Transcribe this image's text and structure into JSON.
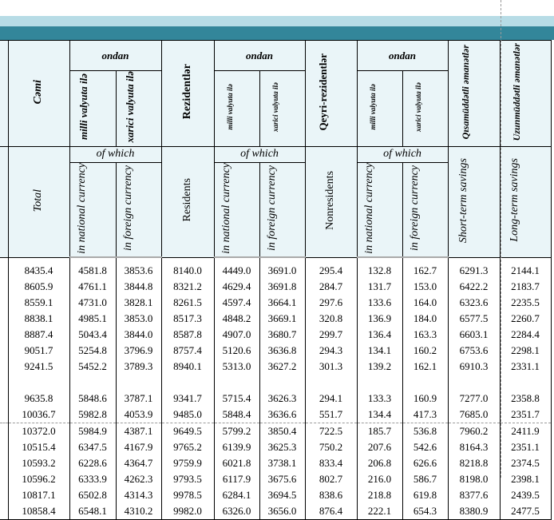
{
  "header_az": {
    "total": "Cəmi",
    "of_which": "ondan",
    "national": "milli valyuta ilə",
    "foreign": "xarici valyuta ilə",
    "residents": "Rezidentlər",
    "nonresidents": "Qeyri-rezidentlər",
    "short_term": "Qısamüddətli əmanətlər",
    "long_term": "Uzunmüddətli əmanətlər"
  },
  "header_en": {
    "total": "Total",
    "of_which": "of which",
    "national": "in national currency",
    "foreign": "in foreign currency",
    "residents": "Residents",
    "nonresidents": "Nonresidents",
    "short_term": "Short-term savings",
    "long_term": "Long-term savings"
  },
  "rows": [
    [
      "8435.4",
      "4581.8",
      "3853.6",
      "8140.0",
      "4449.0",
      "3691.0",
      "295.4",
      "132.8",
      "162.7",
      "6291.3",
      "2144.1"
    ],
    [
      "8605.9",
      "4761.1",
      "3844.8",
      "8321.2",
      "4629.4",
      "3691.8",
      "284.7",
      "131.7",
      "153.0",
      "6422.2",
      "2183.7"
    ],
    [
      "8559.1",
      "4731.0",
      "3828.1",
      "8261.5",
      "4597.4",
      "3664.1",
      "297.6",
      "133.6",
      "164.0",
      "6323.6",
      "2235.5"
    ],
    [
      "8838.1",
      "4985.1",
      "3853.0",
      "8517.3",
      "4848.2",
      "3669.1",
      "320.8",
      "136.9",
      "184.0",
      "6577.5",
      "2260.7"
    ],
    [
      "8887.4",
      "5043.4",
      "3844.0",
      "8587.8",
      "4907.0",
      "3680.7",
      "299.7",
      "136.4",
      "163.3",
      "6603.1",
      "2284.4"
    ],
    [
      "9051.7",
      "5254.8",
      "3796.9",
      "8757.4",
      "5120.6",
      "3636.8",
      "294.3",
      "134.1",
      "160.2",
      "6753.6",
      "2298.1"
    ],
    [
      "9241.5",
      "5452.2",
      "3789.3",
      "8940.1",
      "5313.0",
      "3627.2",
      "301.3",
      "139.2",
      "162.1",
      "6910.3",
      "2331.1"
    ],
    [
      "9635.8",
      "5848.6",
      "3787.1",
      "9341.7",
      "5715.4",
      "3626.3",
      "294.1",
      "133.3",
      "160.9",
      "7277.0",
      "2358.8"
    ],
    [
      "10036.7",
      "5982.8",
      "4053.9",
      "9485.0",
      "5848.4",
      "3636.6",
      "551.7",
      "134.4",
      "417.3",
      "7685.0",
      "2351.7"
    ],
    [
      "10372.0",
      "5984.9",
      "4387.1",
      "9649.5",
      "5799.2",
      "3850.4",
      "722.5",
      "185.7",
      "536.8",
      "7960.2",
      "2411.9"
    ],
    [
      "10515.4",
      "6347.5",
      "4167.9",
      "9765.2",
      "6139.9",
      "3625.3",
      "750.2",
      "207.6",
      "542.6",
      "8164.3",
      "2351.1"
    ],
    [
      "10593.2",
      "6228.6",
      "4364.7",
      "9759.9",
      "6021.8",
      "3738.1",
      "833.4",
      "206.8",
      "626.6",
      "8218.8",
      "2374.5"
    ],
    [
      "10596.2",
      "6333.9",
      "4262.3",
      "9793.5",
      "6117.9",
      "3675.6",
      "802.7",
      "216.0",
      "586.7",
      "8198.0",
      "2398.1"
    ],
    [
      "10817.1",
      "6502.8",
      "4314.3",
      "9978.5",
      "6284.1",
      "3694.5",
      "838.6",
      "218.8",
      "619.8",
      "8377.6",
      "2439.5"
    ],
    [
      "10858.4",
      "6548.1",
      "4310.2",
      "9982.0",
      "6326.0",
      "3656.0",
      "876.4",
      "222.1",
      "654.3",
      "8380.9",
      "2477.5"
    ]
  ]
}
